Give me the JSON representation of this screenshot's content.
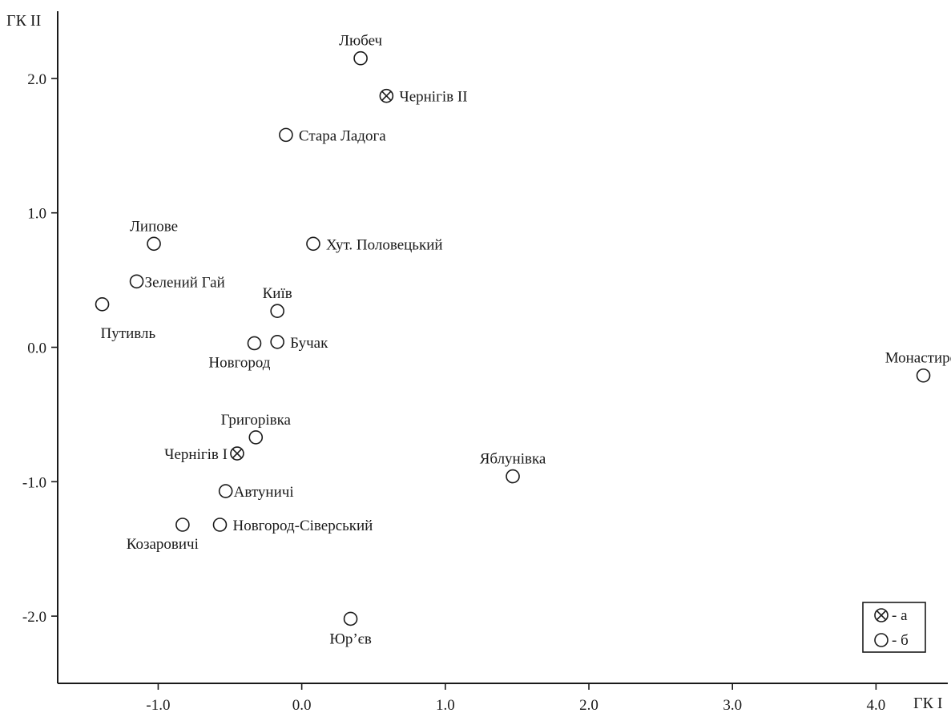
{
  "chart_data": {
    "type": "scatter",
    "xlabel": "ГК I",
    "ylabel": "ГК II",
    "xlim": [
      -1.7,
      4.5
    ],
    "ylim": [
      -2.5,
      2.5
    ],
    "x_ticks": [
      {
        "value": -1.0,
        "label": "-1.0"
      },
      {
        "value": 0.0,
        "label": "0.0"
      },
      {
        "value": 1.0,
        "label": "1.0"
      },
      {
        "value": 2.0,
        "label": "2.0"
      },
      {
        "value": 3.0,
        "label": "3.0"
      },
      {
        "value": 4.0,
        "label": "4.0"
      }
    ],
    "y_ticks": [
      {
        "value": 2.0,
        "label": "2.0"
      },
      {
        "value": 1.0,
        "label": "1.0"
      },
      {
        "value": 0.0,
        "label": "0.0"
      },
      {
        "value": -1.0,
        "label": "-1.0"
      },
      {
        "value": -2.0,
        "label": "-2.0"
      }
    ],
    "grid": false,
    "legend_position": "bottom-right",
    "legend": [
      {
        "marker": "crossed-circle",
        "label": "- а"
      },
      {
        "marker": "circle",
        "label": "- б"
      }
    ],
    "points": [
      {
        "label": "Любеч",
        "x": 0.41,
        "y": 2.15,
        "marker": "circle",
        "label_pos": "above"
      },
      {
        "label": "Чернігів II",
        "x": 0.59,
        "y": 1.87,
        "marker": "crossed-circle",
        "label_pos": "right"
      },
      {
        "label": "Стара Ладога",
        "x": -0.11,
        "y": 1.58,
        "marker": "circle",
        "label_pos": "right"
      },
      {
        "label": "Липове",
        "x": -1.03,
        "y": 0.77,
        "marker": "circle",
        "label_pos": "above"
      },
      {
        "label": "Хут. Половецький",
        "x": 0.08,
        "y": 0.77,
        "marker": "circle",
        "label_pos": "right"
      },
      {
        "label": "Зелений Гай",
        "x": -1.15,
        "y": 0.49,
        "marker": "circle",
        "label_pos": "right-tight"
      },
      {
        "label": "Путивль",
        "x": -1.39,
        "y": 0.32,
        "marker": "circle",
        "label_pos": "below-right"
      },
      {
        "label": "Київ",
        "x": -0.17,
        "y": 0.27,
        "marker": "circle",
        "label_pos": "above"
      },
      {
        "label": "Новгород",
        "x": -0.33,
        "y": 0.03,
        "marker": "circle",
        "label_pos": "below-left"
      },
      {
        "label": "Бучак",
        "x": -0.17,
        "y": 0.04,
        "marker": "circle",
        "label_pos": "right"
      },
      {
        "label": "Монастирок",
        "x": 4.33,
        "y": -0.21,
        "marker": "circle",
        "label_pos": "above-left"
      },
      {
        "label": "Григорівка",
        "x": -0.32,
        "y": -0.67,
        "marker": "circle",
        "label_pos": "above"
      },
      {
        "label": "Чернігів I",
        "x": -0.45,
        "y": -0.79,
        "marker": "crossed-circle",
        "label_pos": "left"
      },
      {
        "label": "Яблунівка",
        "x": 1.47,
        "y": -0.96,
        "marker": "circle",
        "label_pos": "above"
      },
      {
        "label": "Автуничі",
        "x": -0.53,
        "y": -1.07,
        "marker": "circle",
        "label_pos": "right-tight"
      },
      {
        "label": "Козаровичі",
        "x": -0.83,
        "y": -1.32,
        "marker": "circle",
        "label_pos": "below-left"
      },
      {
        "label": "Новгород-Сіверський",
        "x": -0.57,
        "y": -1.32,
        "marker": "circle",
        "label_pos": "right"
      },
      {
        "label": "Юр’єв",
        "x": 0.34,
        "y": -2.02,
        "marker": "circle",
        "label_pos": "below"
      }
    ]
  }
}
